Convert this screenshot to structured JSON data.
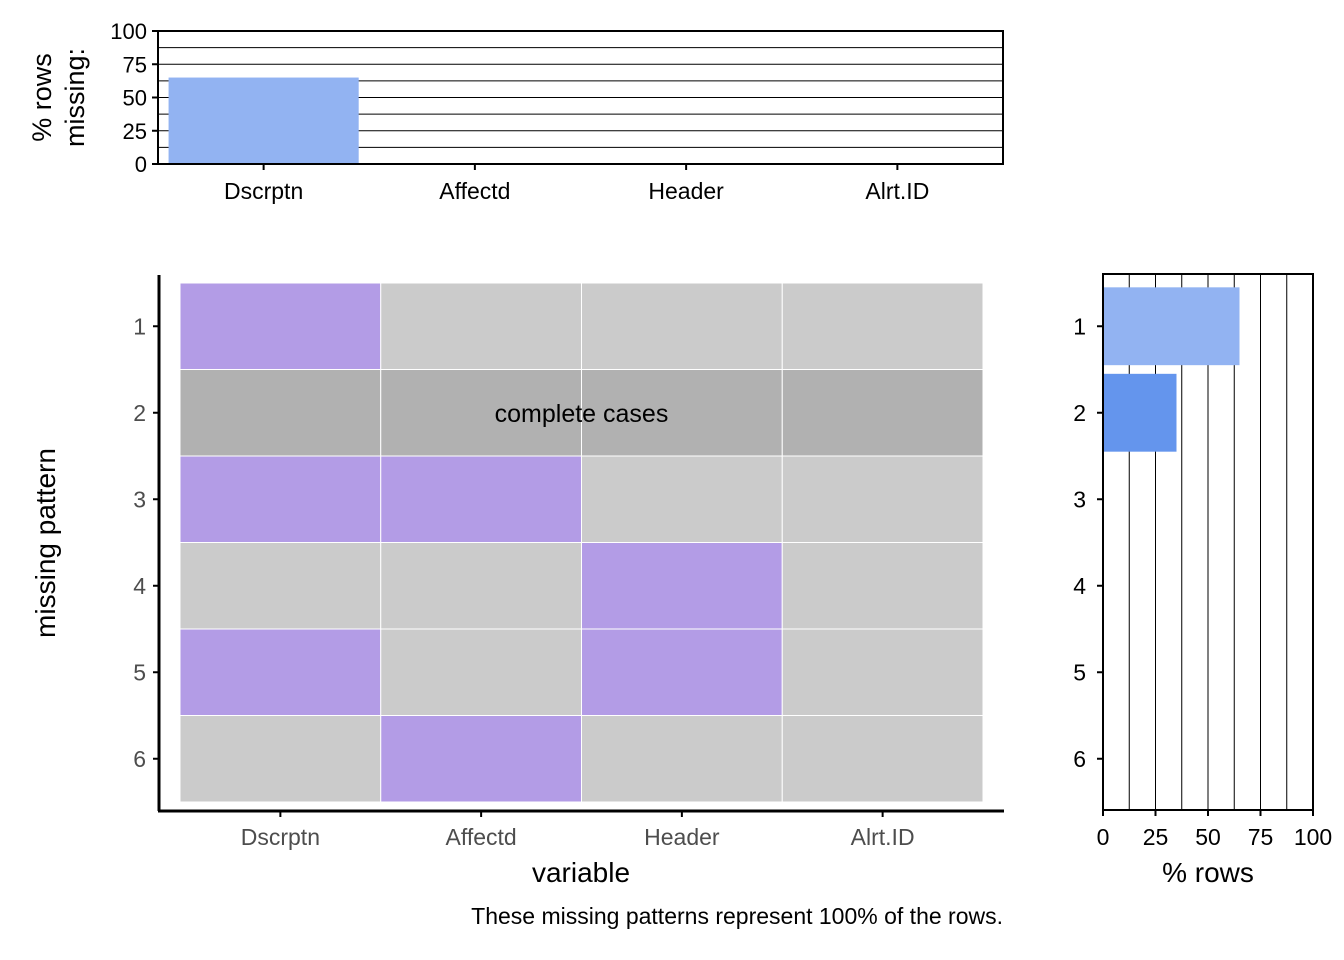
{
  "chart_data": [
    {
      "panel": "top",
      "type": "bar",
      "ylabel": "% rows\nmissing:",
      "categories": [
        "Dscrptn",
        "Affectd",
        "Header",
        "Alrt.ID"
      ],
      "values": [
        65,
        0,
        0,
        0
      ],
      "ylim": [
        0,
        100
      ],
      "yticks": [
        "0",
        "25",
        "50",
        "75",
        "100"
      ],
      "grid": true
    },
    {
      "panel": "main",
      "type": "heatmap",
      "xlabel": "variable",
      "ylabel": "missing pattern",
      "columns": [
        "Dscrptn",
        "Affectd",
        "Header",
        "Alrt.ID"
      ],
      "rows": [
        "1",
        "2",
        "3",
        "4",
        "5",
        "6"
      ],
      "missing": [
        [
          1,
          0,
          0,
          0
        ],
        [
          0,
          0,
          0,
          0
        ],
        [
          1,
          1,
          0,
          0
        ],
        [
          0,
          0,
          1,
          0
        ],
        [
          1,
          0,
          1,
          0
        ],
        [
          0,
          1,
          0,
          0
        ]
      ],
      "complete_row": 2,
      "complete_label": "complete cases",
      "colors": {
        "missing": "#b39ce6",
        "present": "#cbcbcb",
        "complete": "#b1b1b1"
      }
    },
    {
      "panel": "right",
      "type": "bar",
      "orientation": "horizontal",
      "xlabel": "% rows",
      "categories": [
        "1",
        "2",
        "3",
        "4",
        "5",
        "6"
      ],
      "values": [
        65,
        35,
        0,
        0,
        0,
        0
      ],
      "xlim": [
        0,
        100
      ],
      "xticks": [
        "0",
        "25",
        "50",
        "75",
        "100"
      ],
      "colors": [
        "#92b3f2",
        "#6495ed",
        "#6495ed",
        "#6495ed",
        "#6495ed",
        "#6495ed"
      ],
      "grid": true
    }
  ],
  "caption": "These missing patterns represent 100% of the rows."
}
